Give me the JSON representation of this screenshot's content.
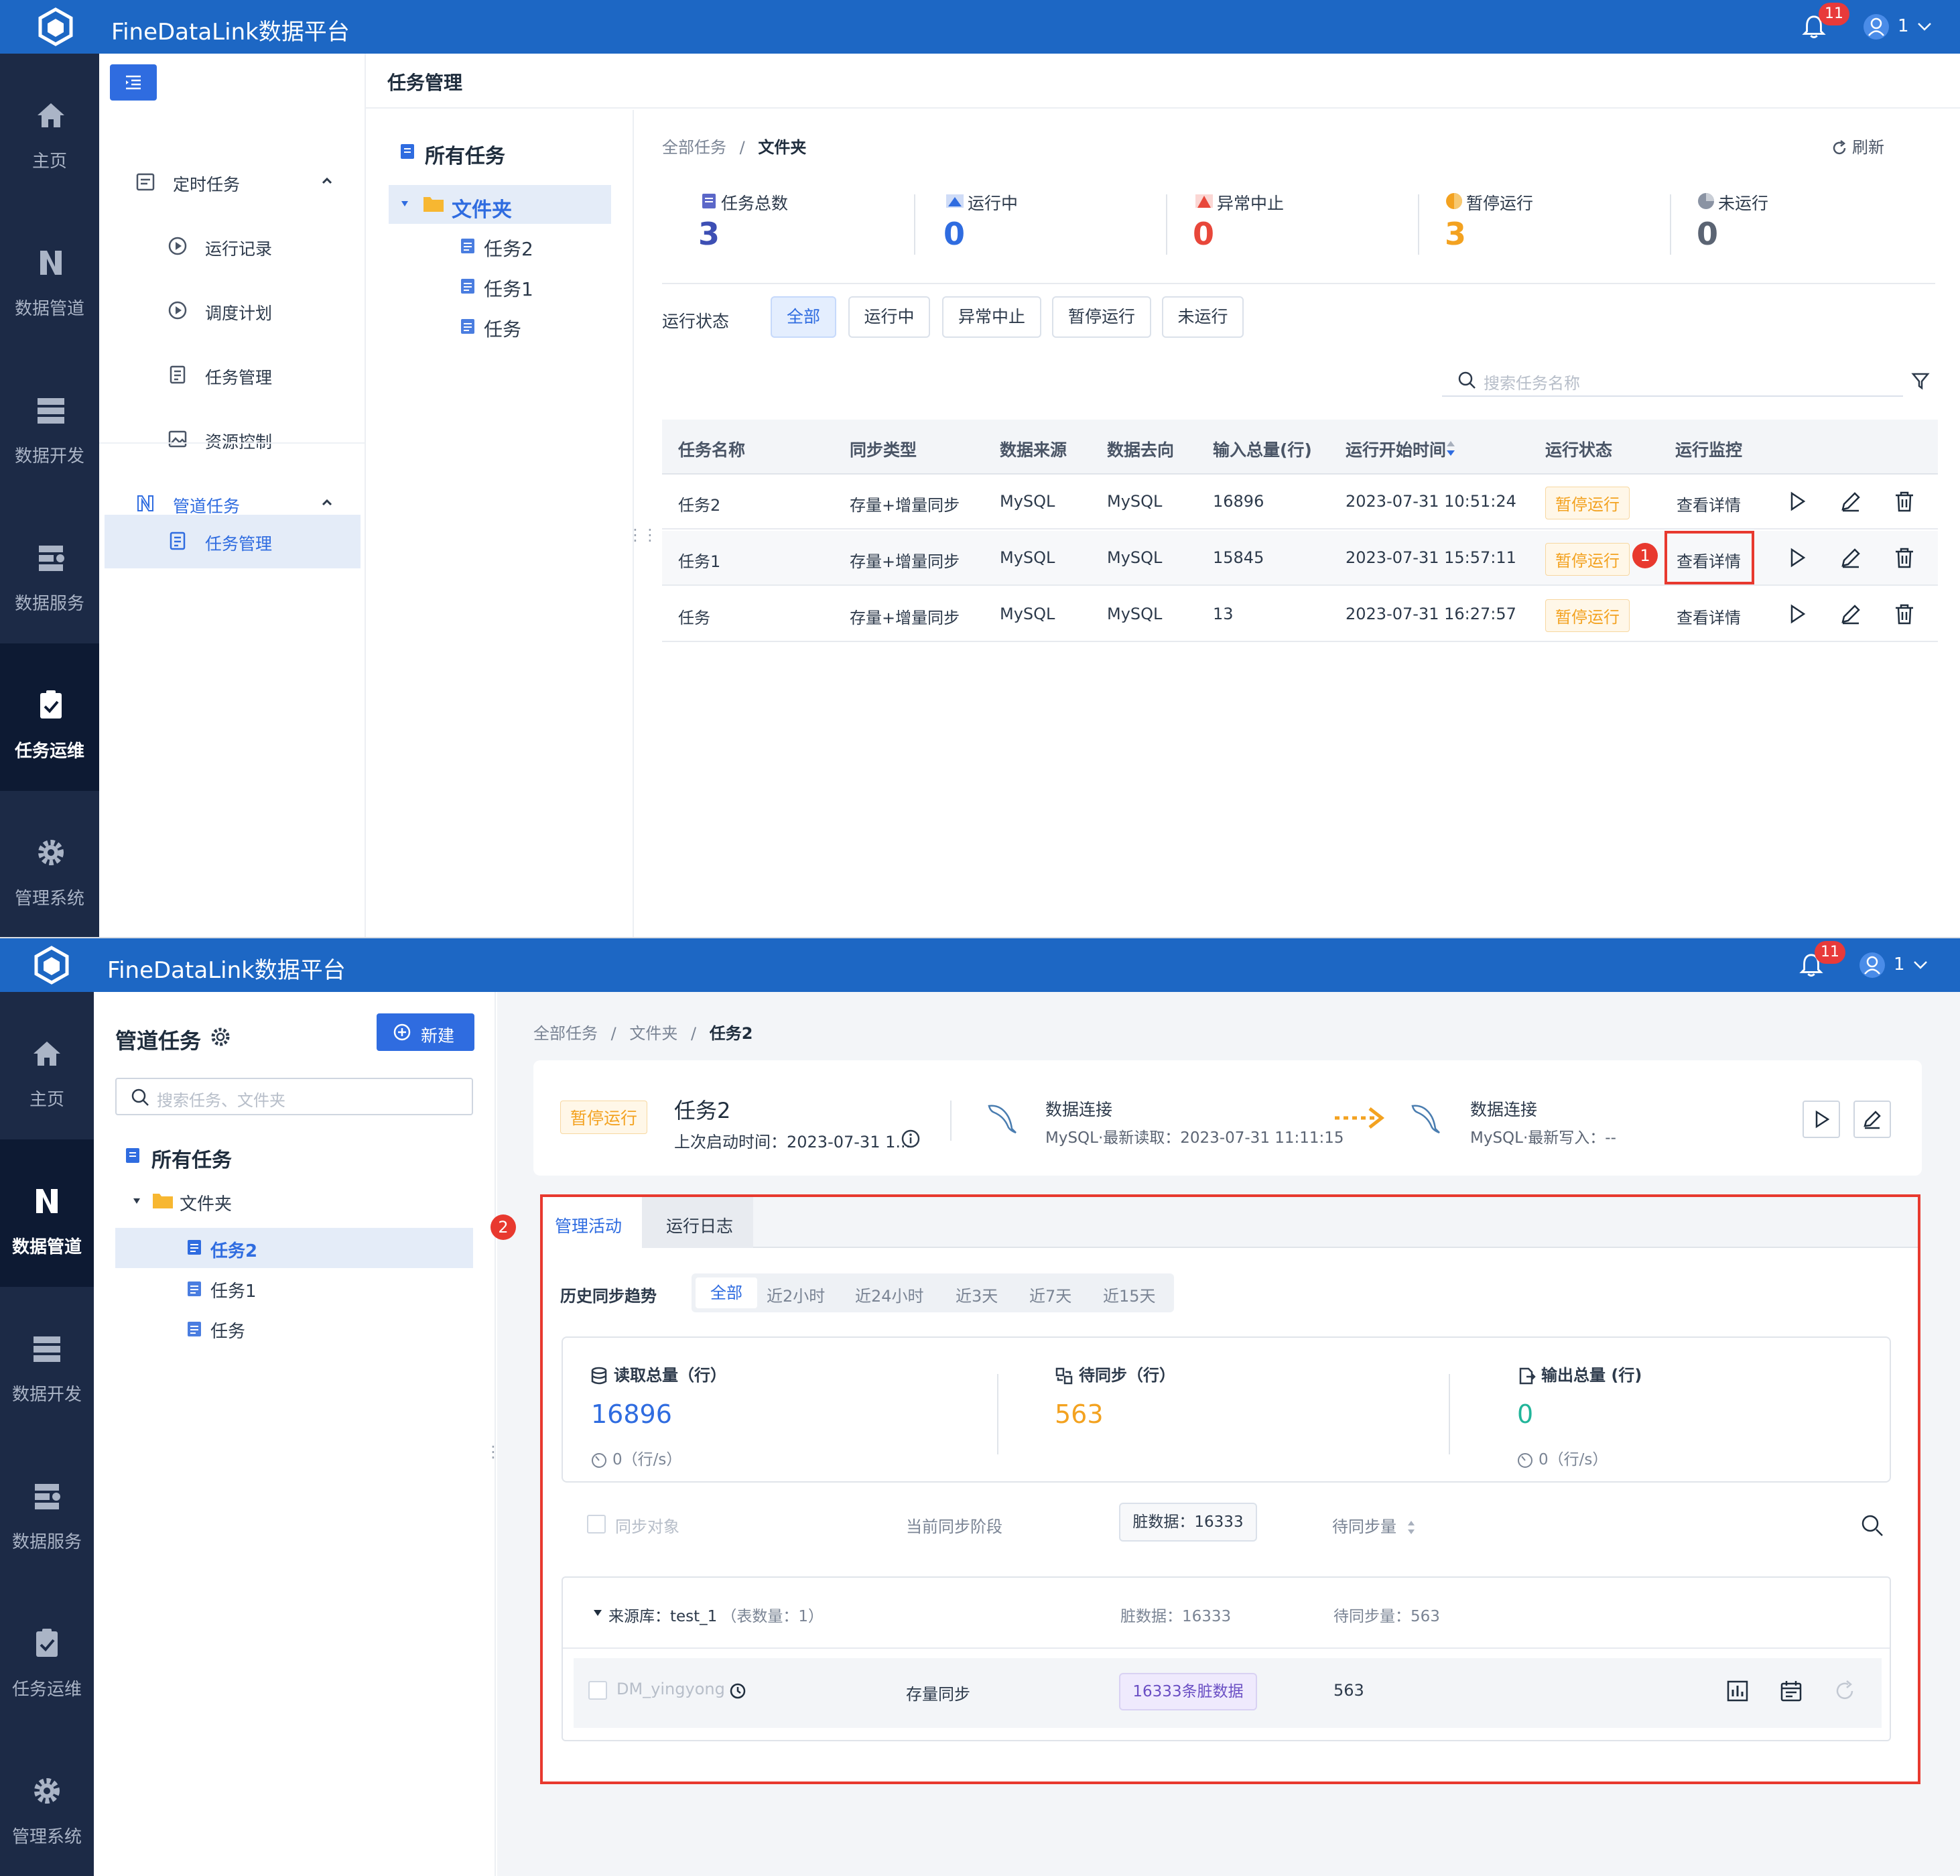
{
  "app": {
    "title": "FineDataLink数据平台",
    "notifications": "11",
    "user": "1"
  },
  "leftnav": [
    {
      "label": "主页",
      "icon": "home-icon"
    },
    {
      "label": "数据管道",
      "icon": "pipeline-icon"
    },
    {
      "label": "数据开发",
      "icon": "dev-icon"
    },
    {
      "label": "数据服务",
      "icon": "service-icon"
    },
    {
      "label": "任务运维",
      "icon": "ops-icon"
    },
    {
      "label": "管理系统",
      "icon": "gear-icon"
    }
  ],
  "s1": {
    "header": "任务管理",
    "subnav": {
      "scheduled": "定时任务",
      "run_record": "运行记录",
      "schedule_plan": "调度计划",
      "task_mgmt": "任务管理",
      "resource_ctrl": "资源控制",
      "pipeline_tasks": "管道任务",
      "pipeline_task_mgmt": "任务管理"
    },
    "tree": {
      "all": "所有任务",
      "folder": "文件夹",
      "items": [
        "任务2",
        "任务1",
        "任务"
      ]
    },
    "breadcrumb": [
      "全部任务",
      "文件夹"
    ],
    "refresh": "刷新",
    "stats": [
      {
        "label": "任务总数",
        "value": "3",
        "color": "#3d4fb4"
      },
      {
        "label": "运行中",
        "value": "0",
        "color": "#2f6ce0"
      },
      {
        "label": "异常中止",
        "value": "0",
        "color": "#e8473a"
      },
      {
        "label": "暂停运行",
        "value": "3",
        "color": "#f3a220"
      },
      {
        "label": "未运行",
        "value": "0",
        "color": "#5b6473"
      }
    ],
    "filter_label": "运行状态",
    "filters": [
      "全部",
      "运行中",
      "异常中止",
      "暂停运行",
      "未运行"
    ],
    "search_placeholder": "搜索任务名称",
    "columns": [
      "任务名称",
      "同步类型",
      "数据来源",
      "数据去向",
      "输入总量(行)",
      "运行开始时间",
      "运行状态",
      "运行监控"
    ],
    "rows": [
      {
        "name": "任务2",
        "sync": "存量+增量同步",
        "src": "MySQL",
        "dst": "MySQL",
        "total": "16896",
        "start": "2023-07-31 10:51:24",
        "status": "暂停运行",
        "monitor": "查看详情"
      },
      {
        "name": "任务1",
        "sync": "存量+增量同步",
        "src": "MySQL",
        "dst": "MySQL",
        "total": "15845",
        "start": "2023-07-31 15:57:11",
        "status": "暂停运行",
        "monitor": "查看详情"
      },
      {
        "name": "任务",
        "sync": "存量+增量同步",
        "src": "MySQL",
        "dst": "MySQL",
        "total": "13",
        "start": "2023-07-31 16:27:57",
        "status": "暂停运行",
        "monitor": "查看详情"
      }
    ],
    "marker": "1"
  },
  "s2": {
    "panel_title": "管道任务",
    "new_btn": "新建",
    "search_placeholder": "搜索任务、文件夹",
    "tree": {
      "all": "所有任务",
      "folder": "文件夹",
      "items": [
        "任务2",
        "任务1",
        "任务"
      ]
    },
    "breadcrumb": [
      "全部任务",
      "文件夹",
      "任务2"
    ],
    "task": {
      "status": "暂停运行",
      "name": "任务2",
      "last_start": "上次启动时间：2023-07-31 1...",
      "src_title": "数据连接",
      "src_sub": "MySQL·最新读取：2023-07-31 11:11:15",
      "dst_title": "数据连接",
      "dst_sub": "MySQL·最新写入：--"
    },
    "marker": "2",
    "tabs": [
      "管理活动",
      "运行日志"
    ],
    "trend_label": "历史同步趋势",
    "ranges": [
      "全部",
      "近2小时",
      "近24小时",
      "近3天",
      "近7天",
      "近15天"
    ],
    "metrics": [
      {
        "label": "读取总量（行）",
        "value": "16896",
        "color": "#2f6ce0",
        "rate": "0（行/s）"
      },
      {
        "label": "待同步（行）",
        "value": "563",
        "color": "#f3a220",
        "rate": ""
      },
      {
        "label": "输出总量 (行)",
        "value": "0",
        "color": "#22b59a",
        "rate": "0（行/s）"
      }
    ],
    "objects_header": {
      "sync_obj": "同步对象",
      "stage": "当前同步阶段",
      "dirty": "脏数据：16333",
      "pending": "待同步量"
    },
    "source_row": {
      "label": "来源库：test_1",
      "count": "（表数量：1）",
      "dirty": "脏数据：16333",
      "pending": "待同步量：563"
    },
    "table_row": {
      "name": "DM_yingyong",
      "stage": "存量同步",
      "dirty": "16333条脏数据",
      "pending": "563"
    }
  }
}
